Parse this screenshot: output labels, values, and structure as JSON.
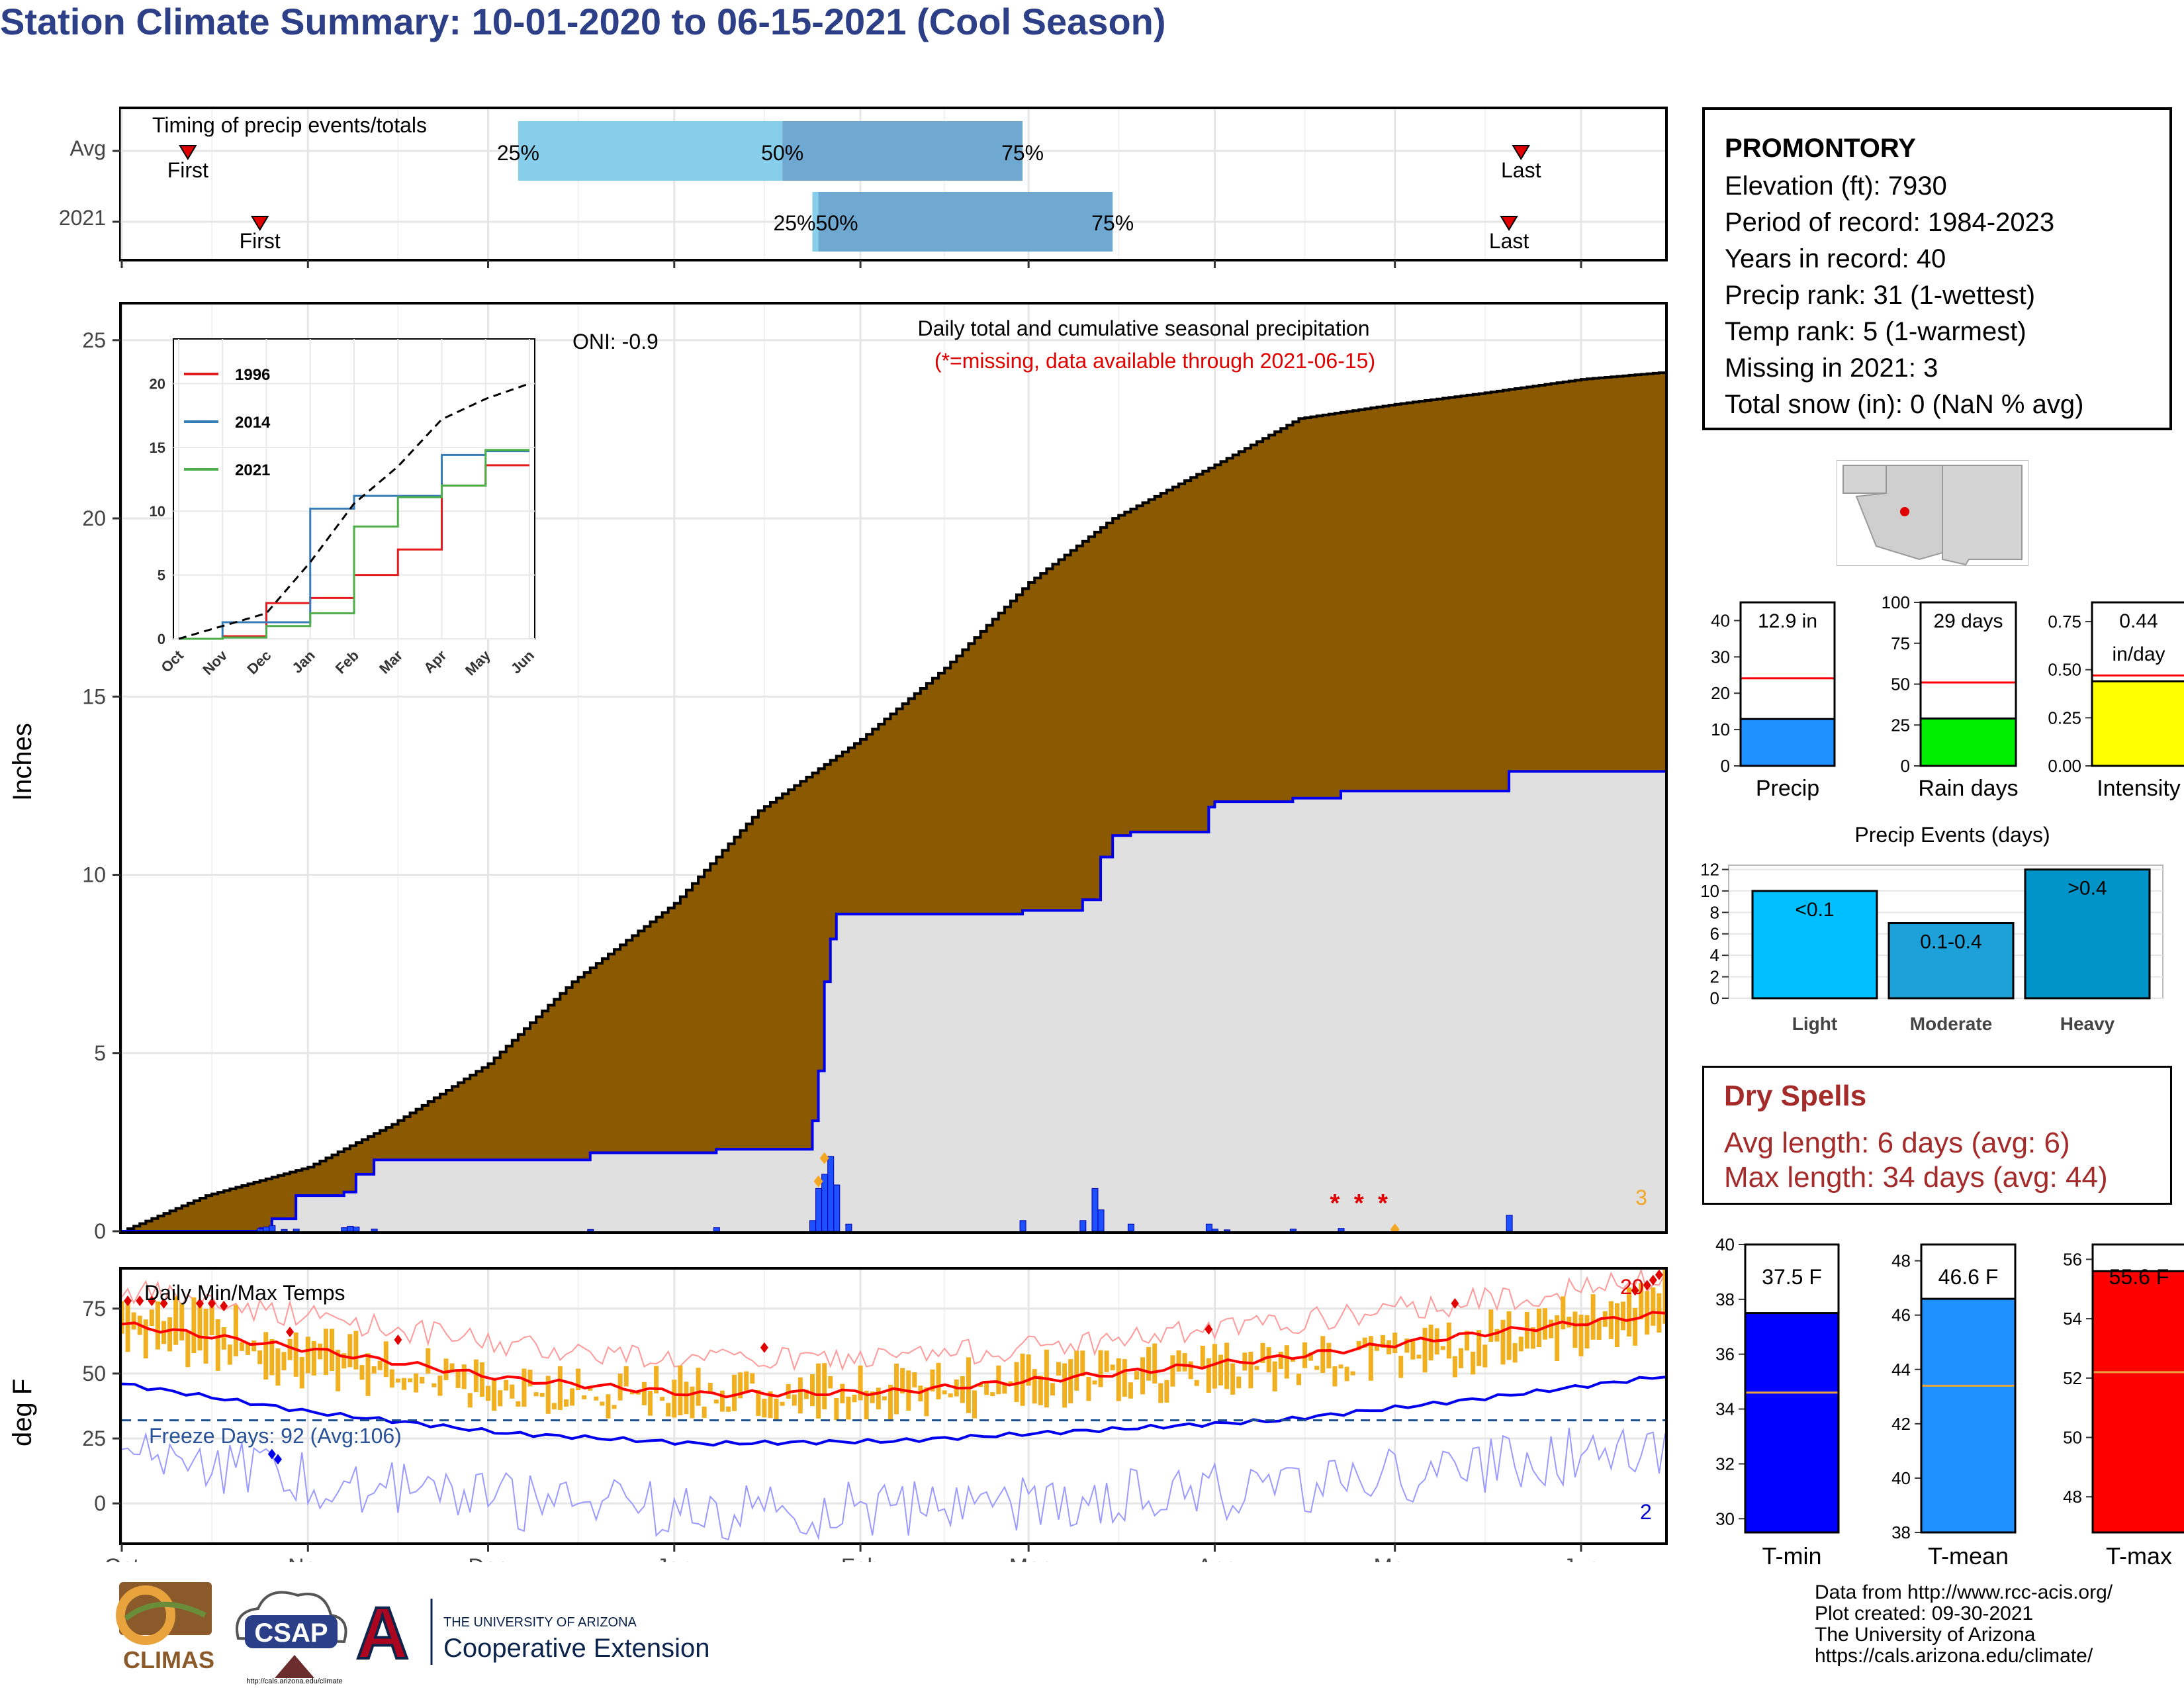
{
  "title": "Station Climate Summary: 10-01-2020 to 06-15-2021 (Cool Season)",
  "timing_panel": {
    "label": "Timing of precip events/totals",
    "rows": [
      "Avg",
      "2021"
    ],
    "first_label": "First",
    "last_label": "Last",
    "avg": {
      "first": "2020-10-12",
      "last": "2021-05-22",
      "p25": "2020-12-06",
      "p50": "2021-01-19",
      "p75": "2021-02-28"
    },
    "y2021": {
      "first": "2020-10-24",
      "last": "2021-05-20",
      "p25": "2021-01-24",
      "p50": "2021-01-25",
      "p75": "2021-03-15"
    },
    "pct_labels": [
      "25%",
      "50%",
      "75%"
    ],
    "overlap_label": "25%50%",
    "colors": {
      "light": "#87ceeb",
      "dark": "#6fa8d0"
    }
  },
  "precip_panel": {
    "subtitle": "Daily total and cumulative seasonal precipitation",
    "missing_note": "(*=missing, data available through 2021-06-15)",
    "oni_label": "ONI: -0.9",
    "missing_count": "3",
    "ylabel": "Inches",
    "yticks": [
      "0",
      "5",
      "10",
      "15",
      "20",
      "25"
    ]
  },
  "inset": {
    "legend": [
      "1996",
      "2014",
      "2021"
    ],
    "legend_colors": [
      "#e41a1c",
      "#377eb8",
      "#4daf4a"
    ],
    "yticks": [
      "0",
      "5",
      "10",
      "15",
      "20"
    ],
    "xticks": [
      "Oct",
      "Nov",
      "Dec",
      "Jan",
      "Feb",
      "Mar",
      "Apr",
      "May",
      "Jun"
    ]
  },
  "temp_panel": {
    "label": "Daily Min/Max Temps",
    "freeze_label": "Freeze Days: 92 (Avg:106)",
    "ylabel": "deg F",
    "yticks": [
      "0",
      "25",
      "50",
      "75"
    ],
    "record_high_count": "20",
    "record_low_count": "2"
  },
  "x_months": [
    "Oct",
    "Nov",
    "Dec",
    "Jan",
    "Feb",
    "Mar",
    "Apr",
    "May",
    "Jun"
  ],
  "station_info": {
    "name": "PROMONTORY",
    "lines": [
      "Elevation (ft): 7930",
      "Period of record: 1984-2023",
      "Years in record: 40",
      "Precip rank: 31 (1-wettest)",
      "Temp rank: 5 (1-warmest)",
      "Missing in 2021: 3",
      "Total snow (in): 0 (NaN % avg)"
    ]
  },
  "summary_bars": [
    {
      "label": "Precip",
      "value_label": "12.9 in",
      "value": 12.9,
      "avg": 24.1,
      "ymax": 45,
      "ticks": [
        "0",
        "10",
        "20",
        "30",
        "40"
      ],
      "color": "#1e90ff"
    },
    {
      "label": "Rain days",
      "value_label": "29 days",
      "value": 29,
      "avg": 51,
      "ymax": 100,
      "ticks": [
        "0",
        "25",
        "50",
        "75",
        "100"
      ],
      "color": "#00ee00"
    },
    {
      "label": "Intensity",
      "value_label": "0.44",
      "value_label2": "in/day",
      "value": 0.44,
      "avg": 0.47,
      "ymax": 0.85,
      "ticks": [
        "0.00",
        "0.25",
        "0.50",
        "0.75"
      ],
      "color": "#ffff00"
    }
  ],
  "precip_events": {
    "title": "Precip Events (days)",
    "categories": [
      "Light",
      "Moderate",
      "Heavy"
    ],
    "bar_labels": [
      "<0.1",
      "0.1-0.4",
      ">0.4"
    ],
    "values": [
      10,
      7,
      12
    ],
    "yticks": [
      "0",
      "2",
      "4",
      "6",
      "8",
      "10",
      "12"
    ],
    "colors": [
      "#00bfff",
      "#1ea0d8",
      "#0094c8"
    ]
  },
  "dry_spells": {
    "title": "Dry Spells",
    "avg_length": "Avg length: 6 days (avg: 6)",
    "max_length": "Max length: 34 days (avg: 44)"
  },
  "temp_bars": [
    {
      "label": "T-min",
      "value_label": "37.5 F",
      "value": 37.5,
      "avg": 34.6,
      "ymin": 29.5,
      "ymax": 40,
      "ticks": [
        "30",
        "32",
        "34",
        "36",
        "38",
        "40"
      ],
      "color": "#0000ff"
    },
    {
      "label": "T-mean",
      "value_label": "46.6 F",
      "value": 46.6,
      "avg": 43.4,
      "ymin": 38,
      "ymax": 48.6,
      "ticks": [
        "38",
        "40",
        "42",
        "44",
        "46",
        "48"
      ],
      "color": "#1e90ff"
    },
    {
      "label": "T-max",
      "value_label": "55.6 F",
      "value": 55.6,
      "avg": 52.2,
      "ymin": 46.8,
      "ymax": 56.5,
      "ticks": [
        "48",
        "50",
        "52",
        "54",
        "56"
      ],
      "color": "#ff0000"
    }
  ],
  "footer": [
    "Data from http://www.rcc-acis.org/",
    "Plot created: 09-30-2021",
    "The University of Arizona",
    "https://cals.arizona.edu/climate/"
  ],
  "logos": {
    "climas": "CLIMAS",
    "csap": "CSAP",
    "csap_url": "http://cals.arizona.edu/climate",
    "ua_small": "THE UNIVERSITY OF ARIZONA",
    "ua_big": "Cooperative Extension",
    "ua_letter": "A"
  },
  "chart_data": [
    {
      "type": "area",
      "title": "Daily total and cumulative seasonal precipitation",
      "ylabel": "Inches",
      "ylim": [
        0,
        26
      ],
      "x_range": [
        "2020-10-01",
        "2021-06-15"
      ],
      "series": [
        {
          "name": "Avg",
          "x": [
            "2020-10-01",
            "2020-10-15",
            "2020-11-01",
            "2020-11-15",
            "2020-12-01",
            "2020-12-15",
            "2021-01-01",
            "2021-01-15",
            "2021-02-01",
            "2021-02-15",
            "2021-03-01",
            "2021-03-15",
            "2021-04-01",
            "2021-04-15",
            "2021-05-01",
            "2021-05-15",
            "2021-06-01",
            "2021-06-15"
          ],
          "y": [
            0,
            1.0,
            1.8,
            3.0,
            4.7,
            7.0,
            9.2,
            11.8,
            13.8,
            15.8,
            18.2,
            20.0,
            21.5,
            22.8,
            23.2,
            23.5,
            23.9,
            24.1
          ]
        },
        {
          "name": "2021",
          "x": [
            "2020-10-01",
            "2020-10-24",
            "2020-10-26",
            "2020-10-30",
            "2020-11-07",
            "2020-11-09",
            "2020-11-12",
            "2020-12-18",
            "2021-01-08",
            "2021-01-24",
            "2021-01-25",
            "2021-01-26",
            "2021-01-27",
            "2021-01-28",
            "2021-02-28",
            "2021-03-10",
            "2021-03-13",
            "2021-03-15",
            "2021-03-18",
            "2021-03-31",
            "2021-04-01",
            "2021-04-14",
            "2021-04-22",
            "2021-05-20",
            "2021-06-15"
          ],
          "y": [
            0,
            0.07,
            0.35,
            1.0,
            1.1,
            1.6,
            2.0,
            2.2,
            2.3,
            3.1,
            4.5,
            7.0,
            8.2,
            8.9,
            9.0,
            9.3,
            10.5,
            11.1,
            11.2,
            11.9,
            12.05,
            12.15,
            12.35,
            12.9,
            12.9
          ]
        }
      ]
    },
    {
      "type": "line",
      "title": "",
      "ylim": [
        0,
        25
      ],
      "categories": [
        "Oct",
        "Nov",
        "Dec",
        "Jan",
        "Feb",
        "Mar",
        "Apr",
        "May",
        "Jun"
      ],
      "series": [
        {
          "name": "1996",
          "values": [
            0,
            0.2,
            2.8,
            3.2,
            5.0,
            7.0,
            12.0,
            13.6,
            13.6
          ]
        },
        {
          "name": "2014",
          "values": [
            0,
            1.3,
            1.3,
            10.2,
            11.2,
            11.2,
            14.4,
            14.7,
            14.7
          ]
        },
        {
          "name": "2021",
          "values": [
            0,
            0.1,
            1.0,
            2.0,
            8.8,
            11.1,
            12.0,
            14.8,
            14.8
          ]
        },
        {
          "name": "Avg",
          "values": [
            0,
            1.0,
            2.0,
            6.0,
            10.6,
            13.5,
            17.2,
            18.8,
            20.0
          ]
        }
      ]
    },
    {
      "type": "line",
      "title": "Daily Min/Max Temps",
      "ylabel": "deg F",
      "ylim": [
        -15,
        90
      ],
      "categories": [
        "Oct",
        "Nov",
        "Dec",
        "Jan",
        "Feb",
        "Mar",
        "Apr",
        "May",
        "Jun"
      ],
      "series": [
        {
          "name": "Avg max",
          "values": [
            69,
            59,
            48,
            42,
            43,
            49,
            56,
            65,
            73
          ]
        },
        {
          "name": "Avg min",
          "values": [
            46,
            35,
            27,
            23,
            24,
            28,
            32,
            40,
            49
          ]
        },
        {
          "name": "Daily max",
          "values": [
            78,
            62,
            46,
            45,
            47,
            53,
            55,
            65,
            84
          ]
        },
        {
          "name": "Daily min",
          "values": [
            48,
            34,
            26,
            24,
            22,
            28,
            35,
            41,
            51
          ]
        }
      ],
      "freeze_line": 32
    },
    {
      "type": "bar",
      "title": "Precip Events (days)",
      "categories": [
        "Light",
        "Moderate",
        "Heavy"
      ],
      "values": [
        10,
        7,
        12
      ]
    }
  ]
}
